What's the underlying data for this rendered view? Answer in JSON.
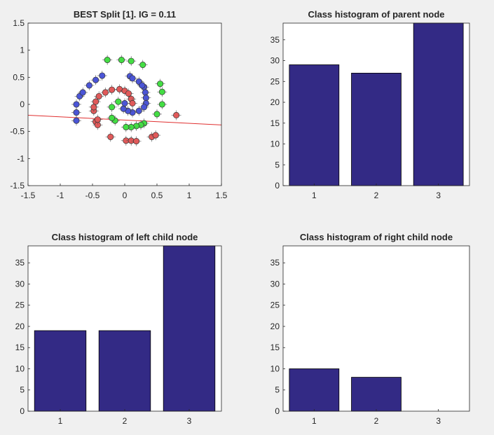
{
  "figure": {
    "background": "#f0f0f0",
    "bar_color": "#332a85",
    "line_color": "#e03030"
  },
  "chart_data": [
    {
      "type": "scatter",
      "title": "BEST Split [1]. IG = 0.11",
      "xlim": [
        -1.5,
        1.5
      ],
      "ylim": [
        -1.5,
        1.5
      ],
      "xticks": [
        "-1.5",
        "-1",
        "-0.5",
        "0",
        "0.5",
        "1",
        "1.5"
      ],
      "yticks": [
        "-1.5",
        "-1",
        "-0.5",
        "0",
        "0.5",
        "1",
        "1.5"
      ],
      "grid": false,
      "series": [
        {
          "color": "#4b55d6",
          "points": [
            [
              -0.75,
              0.0
            ],
            [
              -0.75,
              -0.15
            ],
            [
              -0.75,
              -0.3
            ],
            [
              -0.7,
              0.15
            ],
            [
              -0.65,
              0.22
            ],
            [
              -0.55,
              0.35
            ],
            [
              -0.45,
              0.45
            ],
            [
              -0.35,
              0.53
            ],
            [
              0.08,
              0.52
            ],
            [
              0.12,
              0.48
            ],
            [
              0.22,
              0.42
            ],
            [
              0.3,
              0.32
            ],
            [
              0.32,
              0.22
            ],
            [
              0.33,
              0.12
            ],
            [
              0.33,
              0.02
            ],
            [
              0.3,
              -0.05
            ],
            [
              0.22,
              -0.12
            ],
            [
              0.12,
              -0.15
            ],
            [
              0.05,
              -0.12
            ],
            [
              -0.02,
              -0.08
            ],
            [
              0.0,
              0.02
            ],
            [
              0.27,
              0.35
            ]
          ]
        },
        {
          "color": "#e05a5a",
          "points": [
            [
              -0.45,
              -0.32
            ],
            [
              -0.42,
              -0.38
            ],
            [
              -0.48,
              -0.12
            ],
            [
              -0.48,
              -0.05
            ],
            [
              -0.45,
              0.05
            ],
            [
              -0.4,
              0.15
            ],
            [
              -0.3,
              0.22
            ],
            [
              -0.2,
              0.27
            ],
            [
              -0.08,
              0.28
            ],
            [
              0.0,
              0.25
            ],
            [
              0.06,
              0.2
            ],
            [
              0.1,
              0.1
            ],
            [
              0.12,
              0.02
            ],
            [
              -0.22,
              -0.6
            ],
            [
              0.02,
              -0.67
            ],
            [
              0.1,
              -0.67
            ],
            [
              0.18,
              -0.68
            ],
            [
              0.42,
              -0.6
            ],
            [
              0.48,
              -0.57
            ],
            [
              0.8,
              -0.2
            ],
            [
              -0.42,
              -0.28
            ]
          ]
        },
        {
          "color": "#44dd44",
          "points": [
            [
              -0.27,
              0.82
            ],
            [
              -0.05,
              0.82
            ],
            [
              0.1,
              0.8
            ],
            [
              0.28,
              0.73
            ],
            [
              0.55,
              0.38
            ],
            [
              0.58,
              0.23
            ],
            [
              0.58,
              0.0
            ],
            [
              0.5,
              -0.18
            ],
            [
              0.3,
              -0.35
            ],
            [
              0.25,
              -0.38
            ],
            [
              0.18,
              -0.4
            ],
            [
              0.1,
              -0.42
            ],
            [
              0.02,
              -0.42
            ],
            [
              -0.15,
              -0.3
            ],
            [
              -0.2,
              -0.25
            ],
            [
              -0.2,
              -0.05
            ],
            [
              -0.1,
              0.05
            ]
          ]
        }
      ],
      "split_line": {
        "x": [
          -1.5,
          1.5
        ],
        "y": [
          -0.2,
          -0.38
        ]
      }
    },
    {
      "type": "bar",
      "title": "Class histogram of parent node",
      "categories": [
        "1",
        "2",
        "3"
      ],
      "values": [
        29,
        27,
        39
      ],
      "ylim": [
        0,
        39
      ],
      "yticks": [
        "0",
        "5",
        "10",
        "15",
        "20",
        "25",
        "30",
        "35"
      ]
    },
    {
      "type": "bar",
      "title": "Class histogram of left child node",
      "categories": [
        "1",
        "2",
        "3"
      ],
      "values": [
        19,
        19,
        39
      ],
      "ylim": [
        0,
        39
      ],
      "yticks": [
        "0",
        "5",
        "10",
        "15",
        "20",
        "25",
        "30",
        "35"
      ]
    },
    {
      "type": "bar",
      "title": "Class histogram of right child node",
      "categories": [
        "1",
        "2",
        "3"
      ],
      "values": [
        10,
        8,
        0
      ],
      "ylim": [
        0,
        39
      ],
      "yticks": [
        "0",
        "5",
        "10",
        "15",
        "20",
        "25",
        "30",
        "35"
      ]
    }
  ]
}
